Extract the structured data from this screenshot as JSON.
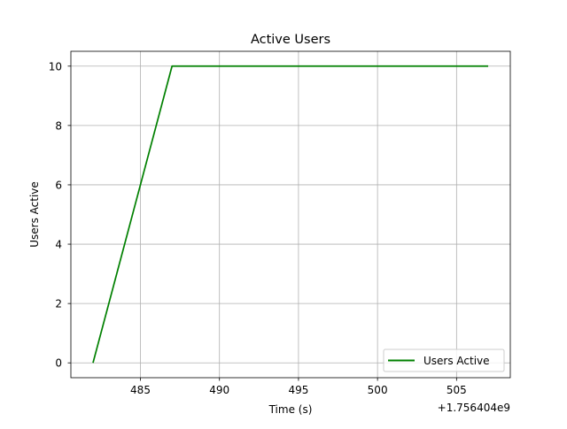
{
  "chart_data": {
    "type": "line",
    "title": "Active Users",
    "xlabel": "Time (s)",
    "ylabel": "Users Active",
    "x_offset_label": "+1.756404e9",
    "x_ticks": [
      "485",
      "490",
      "495",
      "500",
      "505"
    ],
    "y_ticks": [
      "0",
      "2",
      "4",
      "6",
      "8",
      "10"
    ],
    "xlim": [
      1756404480.6,
      1756404508.4
    ],
    "ylim": [
      -0.5,
      10.5
    ],
    "grid": true,
    "legend_position": "lower-right",
    "series": [
      {
        "name": "Users Active",
        "color": "#008000",
        "x": [
          1756404482,
          1756404487,
          1756404507
        ],
        "y": [
          0,
          10,
          10
        ]
      }
    ]
  }
}
